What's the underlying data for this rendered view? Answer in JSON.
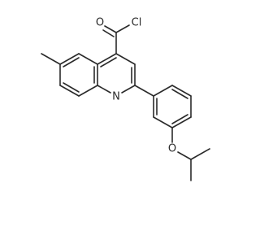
{
  "atoms": [
    {
      "label": "O"
    },
    {
      "label": "Cl"
    },
    {
      "label": "N"
    },
    {
      "label": "O"
    }
  ]
}
